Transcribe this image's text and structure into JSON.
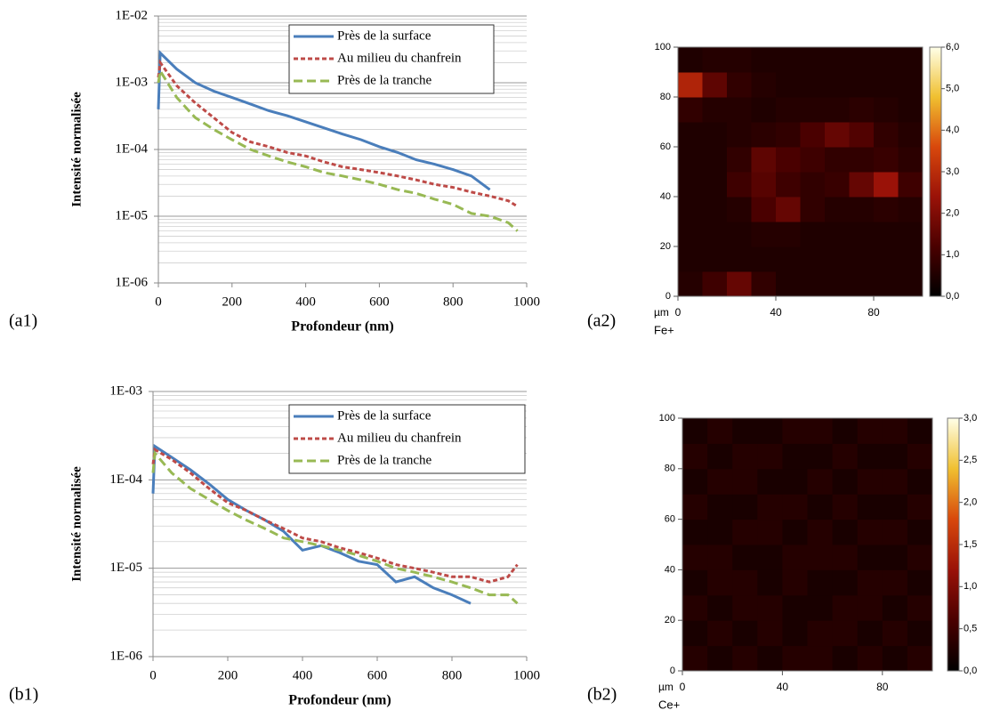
{
  "chart_data": [
    {
      "type": "line",
      "panel_label": "(a1)",
      "y_label": "Intensité normalisée",
      "x_label": "Profondeur (nm)",
      "log_y": true,
      "grid": true,
      "minor_grid": true,
      "legend": "upper right",
      "xlim": [
        0,
        1000
      ],
      "xticks": [
        0,
        200,
        400,
        600,
        800,
        1000
      ],
      "ylim": [
        1e-06,
        0.01
      ],
      "yticks": [
        {
          "value": 1e-06,
          "label": "1E-06"
        },
        {
          "value": 1e-05,
          "label": "1E-05"
        },
        {
          "value": 0.0001,
          "label": "1E-04"
        },
        {
          "value": 0.001,
          "label": "1E-03"
        },
        {
          "value": 0.01,
          "label": "1E-02"
        }
      ],
      "x": [
        0,
        5,
        50,
        100,
        150,
        200,
        250,
        300,
        350,
        400,
        450,
        500,
        550,
        600,
        650,
        700,
        750,
        800,
        850,
        900,
        950,
        975
      ],
      "series": [
        {
          "name": "Près de la surface",
          "color": "#4a7ebb",
          "dash": "solid",
          "values": [
            0.0004,
            0.0028,
            0.0016,
            0.001,
            0.00075,
            0.0006,
            0.00048,
            0.00038,
            0.00032,
            0.00026,
            0.00021,
            0.00017,
            0.00014,
            0.00011,
            9e-05,
            7e-05,
            6e-05,
            5e-05,
            4e-05,
            2.5e-05,
            null,
            null
          ]
        },
        {
          "name": "Au milieu du chanfrein",
          "color": "#be4b48",
          "dash": "short",
          "values": [
            0.0012,
            0.002,
            0.0009,
            0.0005,
            0.0003,
            0.00018,
            0.00013,
            0.00011,
            9e-05,
            8e-05,
            6.5e-05,
            5.5e-05,
            5e-05,
            4.5e-05,
            4e-05,
            3.5e-05,
            3e-05,
            2.7e-05,
            2.3e-05,
            2e-05,
            1.7e-05,
            1.4e-05
          ]
        },
        {
          "name": "Près de la tranche",
          "color": "#98b954",
          "dash": "long",
          "values": [
            0.001,
            0.0015,
            0.0006,
            0.0003,
            0.0002,
            0.00014,
            0.0001,
            8e-05,
            6.5e-05,
            5.5e-05,
            4.5e-05,
            4e-05,
            3.5e-05,
            3e-05,
            2.5e-05,
            2.2e-05,
            1.8e-05,
            1.5e-05,
            1.1e-05,
            1e-05,
            8e-06,
            6e-06
          ]
        }
      ]
    },
    {
      "type": "heatmap",
      "panel_label": "(a2)",
      "unit": "µm",
      "x_label": "Fe+",
      "xlim": [
        0,
        100
      ],
      "xticks": [
        0,
        40,
        80
      ],
      "ylim": [
        0,
        100
      ],
      "yticks": [
        0,
        20,
        40,
        60,
        80,
        100
      ],
      "zlim": [
        0,
        6
      ],
      "zticks": [
        {
          "value": 0,
          "label": "0,0"
        },
        {
          "value": 1,
          "label": "1,0"
        },
        {
          "value": 2,
          "label": "2,0"
        },
        {
          "value": 3,
          "label": "3,0"
        },
        {
          "value": 4,
          "label": "4,0"
        },
        {
          "value": 5,
          "label": "5,0"
        },
        {
          "value": 6,
          "label": "6,0"
        }
      ],
      "colormap": [
        "#000000",
        "#4a0000",
        "#9a1208",
        "#d8480c",
        "#f0c030",
        "#ffffe8"
      ],
      "x": [
        5,
        15,
        25,
        35,
        45,
        55,
        65,
        75,
        85,
        95
      ],
      "y": [
        5,
        15,
        25,
        35,
        45,
        55,
        65,
        75,
        85,
        95
      ],
      "z": [
        [
          0.6,
          1.0,
          1.6,
          0.8,
          0.5,
          0.5,
          0.5,
          0.5,
          0.5,
          0.5
        ],
        [
          0.5,
          0.5,
          0.5,
          0.5,
          0.5,
          0.5,
          0.5,
          0.5,
          0.5,
          0.5
        ],
        [
          0.5,
          0.5,
          0.5,
          0.6,
          0.6,
          0.5,
          0.5,
          0.5,
          0.5,
          0.5
        ],
        [
          0.5,
          0.5,
          0.6,
          1.2,
          1.6,
          0.8,
          0.6,
          0.6,
          0.7,
          0.6
        ],
        [
          0.5,
          0.5,
          1.0,
          1.4,
          1.0,
          0.8,
          0.9,
          1.6,
          2.4,
          1.0
        ],
        [
          0.5,
          0.5,
          0.8,
          1.5,
          1.2,
          1.0,
          0.8,
          0.8,
          0.9,
          0.7
        ],
        [
          0.5,
          0.5,
          0.6,
          0.7,
          0.8,
          1.2,
          1.6,
          1.3,
          0.8,
          0.6
        ],
        [
          0.8,
          0.6,
          0.6,
          0.5,
          0.6,
          0.6,
          0.6,
          0.7,
          0.6,
          0.5
        ],
        [
          2.8,
          1.5,
          0.8,
          0.6,
          0.5,
          0.5,
          0.5,
          0.5,
          0.5,
          0.5
        ],
        [
          0.5,
          0.6,
          0.6,
          0.5,
          0.5,
          0.5,
          0.5,
          0.5,
          0.5,
          0.5
        ]
      ]
    },
    {
      "type": "line",
      "panel_label": "(b1)",
      "y_label": "Intensité normalisée",
      "x_label": "Profondeur (nm)",
      "log_y": true,
      "grid": true,
      "minor_grid": true,
      "legend": "upper right",
      "xlim": [
        0,
        1000
      ],
      "xticks": [
        0,
        200,
        400,
        600,
        800,
        1000
      ],
      "ylim": [
        1e-06,
        0.001
      ],
      "yticks": [
        {
          "value": 1e-06,
          "label": "1E-06"
        },
        {
          "value": 1e-05,
          "label": "1E-05"
        },
        {
          "value": 0.0001,
          "label": "1E-04"
        },
        {
          "value": 0.001,
          "label": "1E-03"
        }
      ],
      "x": [
        0,
        5,
        50,
        100,
        150,
        200,
        250,
        300,
        350,
        400,
        450,
        500,
        550,
        600,
        650,
        700,
        750,
        800,
        850,
        900,
        950,
        975
      ],
      "series": [
        {
          "name": "Près de la surface",
          "color": "#4a7ebb",
          "dash": "solid",
          "values": [
            7e-05,
            0.00024,
            0.00018,
            0.00013,
            9e-05,
            6e-05,
            4.5e-05,
            3.5e-05,
            2.6e-05,
            1.6e-05,
            1.8e-05,
            1.5e-05,
            1.2e-05,
            1.1e-05,
            7e-06,
            8e-06,
            6e-06,
            5e-06,
            4e-06,
            null,
            null,
            null
          ]
        },
        {
          "name": "Au milieu du chanfrein",
          "color": "#be4b48",
          "dash": "short",
          "values": [
            0.00015,
            0.00022,
            0.00017,
            0.00012,
            8e-05,
            5.5e-05,
            4.5e-05,
            3.5e-05,
            2.8e-05,
            2.2e-05,
            2e-05,
            1.7e-05,
            1.5e-05,
            1.3e-05,
            1.1e-05,
            1e-05,
            9e-06,
            8e-06,
            8e-06,
            7e-06,
            8e-06,
            1.1e-05
          ]
        },
        {
          "name": "Près de la tranche",
          "color": "#98b954",
          "dash": "long",
          "values": [
            0.00012,
            0.0002,
            0.00012,
            8e-05,
            6e-05,
            4.5e-05,
            3.5e-05,
            2.8e-05,
            2.2e-05,
            2e-05,
            1.8e-05,
            1.6e-05,
            1.4e-05,
            1.2e-05,
            1e-05,
            9e-06,
            8e-06,
            7e-06,
            6e-06,
            5e-06,
            5e-06,
            4e-06
          ]
        }
      ]
    },
    {
      "type": "heatmap",
      "panel_label": "(b2)",
      "unit": "µm",
      "x_label": "Ce+",
      "xlim": [
        0,
        100
      ],
      "xticks": [
        0,
        40,
        80
      ],
      "ylim": [
        0,
        100
      ],
      "yticks": [
        0,
        20,
        40,
        60,
        80,
        100
      ],
      "zlim": [
        0,
        3
      ],
      "zticks": [
        {
          "value": 0,
          "label": "0,0"
        },
        {
          "value": 0.5,
          "label": "0,5"
        },
        {
          "value": 1,
          "label": "1,0"
        },
        {
          "value": 1.5,
          "label": "1,5"
        },
        {
          "value": 2,
          "label": "2,0"
        },
        {
          "value": 2.5,
          "label": "2,5"
        },
        {
          "value": 3,
          "label": "3,0"
        }
      ],
      "colormap": [
        "#000000",
        "#4a0000",
        "#9a1208",
        "#d8480c",
        "#f0c030",
        "#ffffe8"
      ],
      "x": [
        5,
        15,
        25,
        35,
        45,
        55,
        65,
        75,
        85,
        95
      ],
      "y": [
        5,
        15,
        25,
        35,
        45,
        55,
        65,
        75,
        85,
        95
      ],
      "z": [
        [
          0.3,
          0.2,
          0.3,
          0.2,
          0.3,
          0.3,
          0.2,
          0.3,
          0.2,
          0.3
        ],
        [
          0.2,
          0.3,
          0.2,
          0.3,
          0.2,
          0.3,
          0.3,
          0.2,
          0.3,
          0.2
        ],
        [
          0.3,
          0.2,
          0.3,
          0.3,
          0.2,
          0.2,
          0.3,
          0.3,
          0.2,
          0.3
        ],
        [
          0.2,
          0.3,
          0.3,
          0.2,
          0.3,
          0.2,
          0.2,
          0.3,
          0.3,
          0.2
        ],
        [
          0.3,
          0.3,
          0.2,
          0.2,
          0.3,
          0.3,
          0.3,
          0.2,
          0.2,
          0.3
        ],
        [
          0.2,
          0.2,
          0.3,
          0.3,
          0.2,
          0.3,
          0.2,
          0.3,
          0.3,
          0.2
        ],
        [
          0.3,
          0.2,
          0.2,
          0.3,
          0.3,
          0.2,
          0.3,
          0.2,
          0.2,
          0.3
        ],
        [
          0.2,
          0.3,
          0.3,
          0.2,
          0.2,
          0.3,
          0.2,
          0.3,
          0.3,
          0.2
        ],
        [
          0.3,
          0.2,
          0.3,
          0.3,
          0.2,
          0.2,
          0.3,
          0.2,
          0.2,
          0.3
        ],
        [
          0.2,
          0.3,
          0.2,
          0.2,
          0.3,
          0.3,
          0.2,
          0.3,
          0.3,
          0.2
        ]
      ]
    }
  ]
}
